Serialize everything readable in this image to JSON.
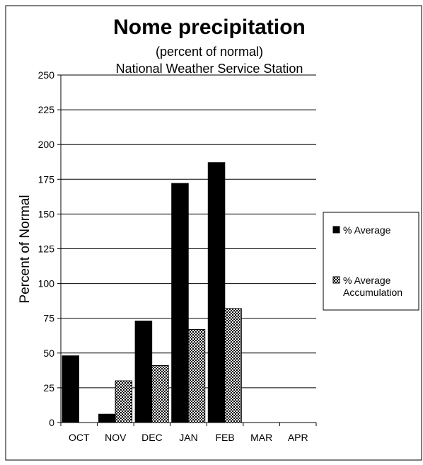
{
  "chart_data": {
    "type": "bar",
    "title": "Nome precipitation",
    "subtitle": "(percent of normal)",
    "subtitle2": "National Weather Service Station",
    "xlabel": "",
    "ylabel": "Percent of Normal",
    "ylim": [
      0,
      250
    ],
    "yticks": [
      0,
      25,
      50,
      75,
      100,
      125,
      150,
      175,
      200,
      225,
      250
    ],
    "categories": [
      "OCT",
      "NOV",
      "DEC",
      "JAN",
      "FEB",
      "MAR",
      "APR"
    ],
    "grid": true,
    "legend_position": "right",
    "series": [
      {
        "name": "% Average",
        "values": [
          48,
          6,
          73,
          172,
          187,
          null,
          null
        ],
        "fill": "solid",
        "color": "#000000"
      },
      {
        "name": "% Average Accumulation",
        "values": [
          null,
          30,
          41,
          67,
          82,
          null,
          null
        ],
        "fill": "checkered",
        "color": "#000000"
      }
    ]
  }
}
